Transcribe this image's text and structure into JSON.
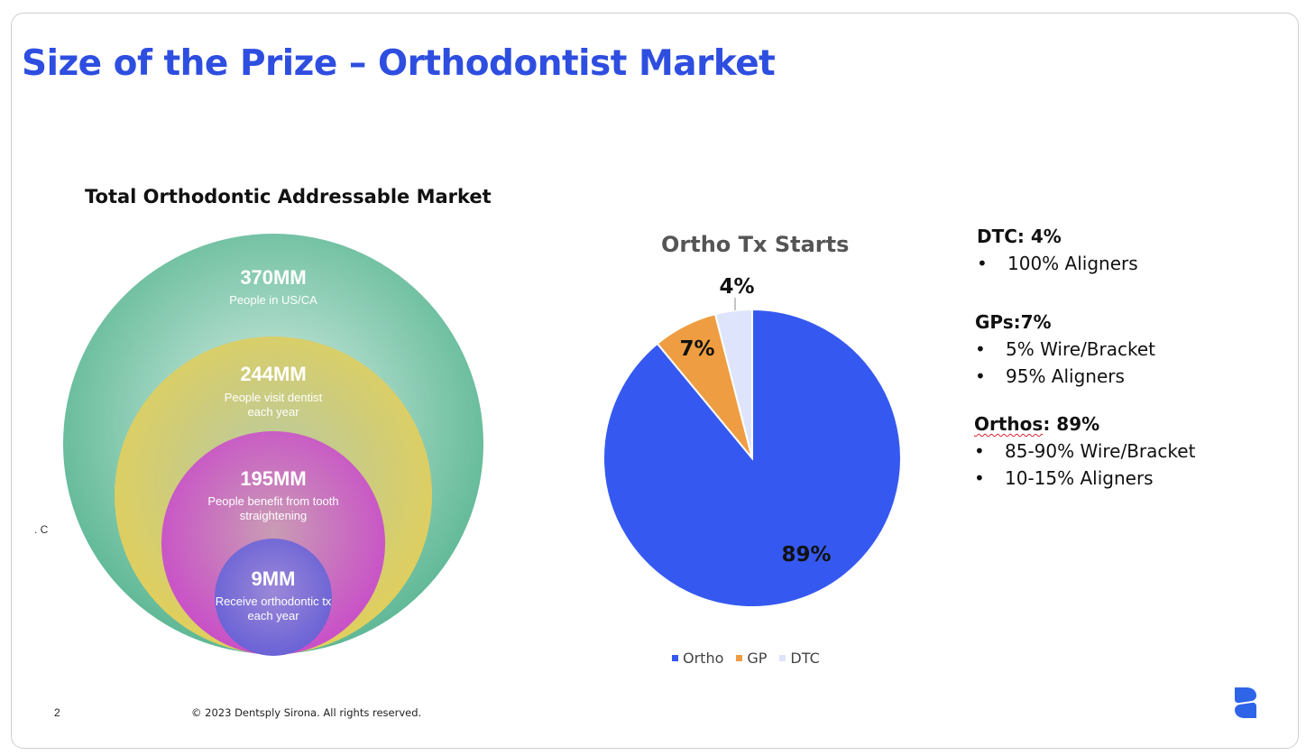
{
  "title": "Size of the Prize – Orthodontist Market",
  "market_title": "Total Orthodontic Addressable Market",
  "stray_text": ". C",
  "bubbles": [
    {
      "value": "370MM",
      "line1": "People in US/CA",
      "line2": "",
      "color": "#5fb896"
    },
    {
      "value": "244MM",
      "line1": "People visit dentist",
      "line2": "each year",
      "color": "#e0cf5c"
    },
    {
      "value": "195MM",
      "line1": "People benefit from tooth",
      "line2": "straightening",
      "color": "#c94fc8"
    },
    {
      "value": "9MM",
      "line1": "Receive orthodontic tx",
      "line2": "each year",
      "color": "#6a62d6"
    }
  ],
  "chart_data": {
    "type": "pie",
    "title": "Ortho Tx Starts",
    "series": [
      {
        "name": "Ortho",
        "value": 89,
        "label": "89%",
        "color": "#3559f0"
      },
      {
        "name": "GP",
        "value": 7,
        "label": "7%",
        "color": "#ee9d42"
      },
      {
        "name": "DTC",
        "value": 4,
        "label": "4%",
        "color": "#dde4fb"
      }
    ],
    "legend_position": "bottom"
  },
  "notes": {
    "dtc": {
      "head": "DTC: 4%",
      "bullets": [
        "100% Aligners"
      ]
    },
    "gps": {
      "head": "GPs:7%",
      "bullets": [
        "5% Wire/Bracket",
        "95% Aligners"
      ]
    },
    "orthos": {
      "head_word": "Orthos",
      "head_rest": ": 89%",
      "bullets": [
        "85-90% Wire/Bracket",
        "10-15% Aligners"
      ]
    },
    "bullet_char": "•"
  },
  "footer": {
    "page": "2",
    "copyright": "© 2023 Dentsply Sirona. All rights reserved."
  },
  "logo_color": "#2e64e8"
}
